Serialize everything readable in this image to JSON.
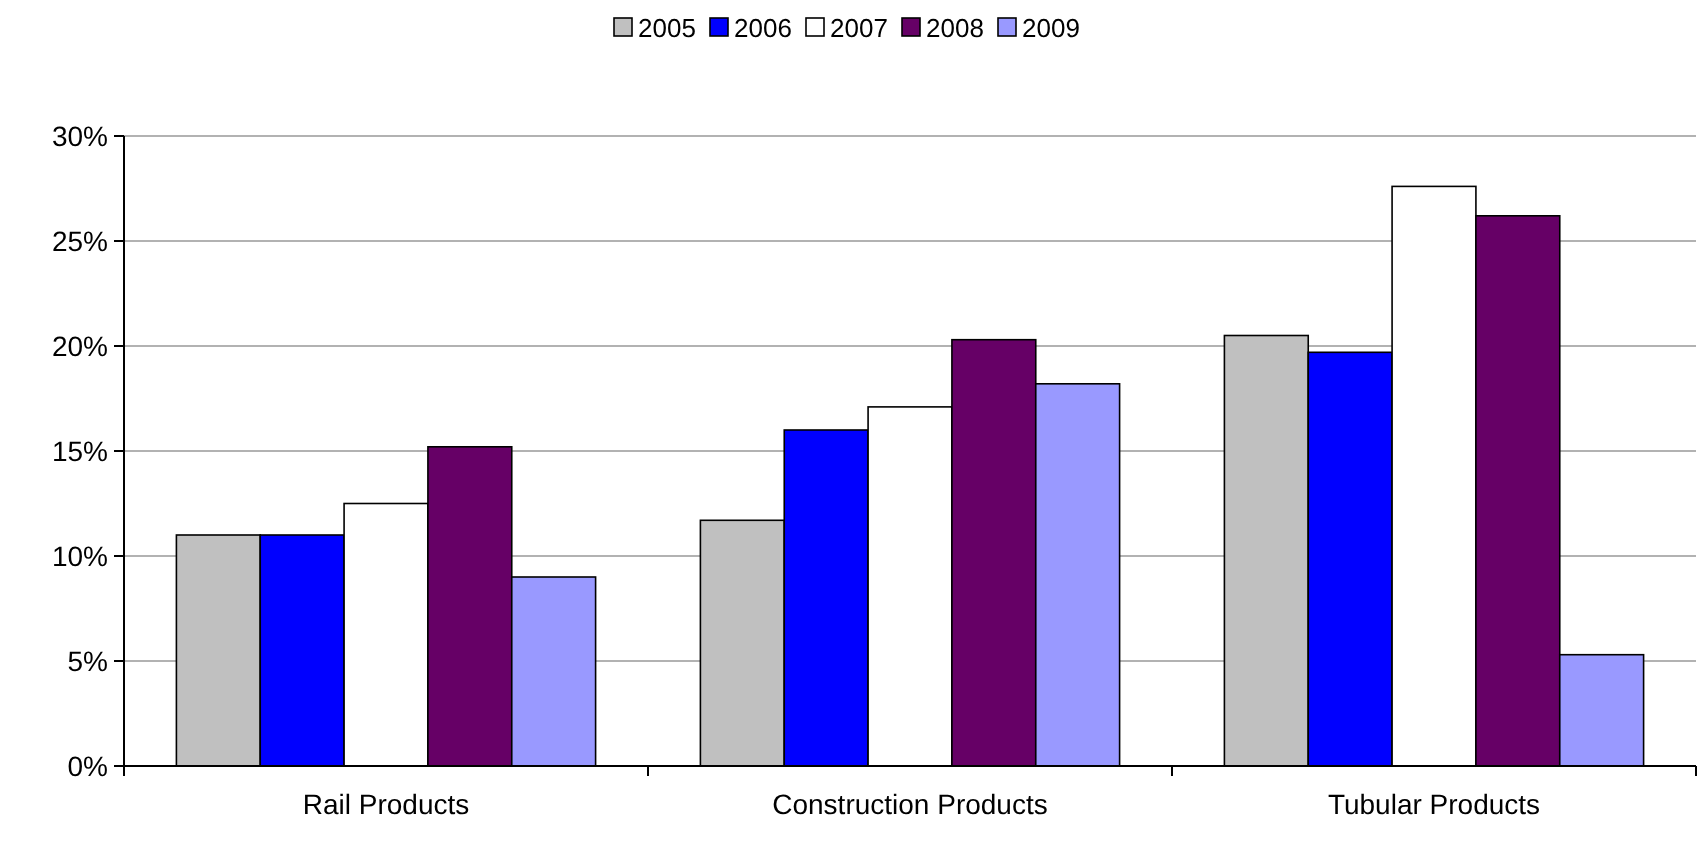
{
  "chart_data": {
    "type": "bar",
    "categories": [
      "Rail Products",
      "Construction Products",
      "Tubular Products"
    ],
    "series": [
      {
        "name": "2005",
        "color": "#c0c0c0",
        "values": [
          11.0,
          11.7,
          20.5
        ]
      },
      {
        "name": "2006",
        "color": "#0000ff",
        "values": [
          11.0,
          16.0,
          19.7
        ]
      },
      {
        "name": "2007",
        "color": "#ffffff",
        "values": [
          12.5,
          17.1,
          27.6
        ]
      },
      {
        "name": "2008",
        "color": "#660066",
        "values": [
          15.2,
          20.3,
          26.2
        ]
      },
      {
        "name": "2009",
        "color": "#9999ff",
        "values": [
          9.0,
          18.2,
          5.3
        ]
      }
    ],
    "ylim": [
      0,
      30
    ],
    "yticks": [
      {
        "value": 0,
        "label": "0%"
      },
      {
        "value": 5,
        "label": "5%"
      },
      {
        "value": 10,
        "label": "10%"
      },
      {
        "value": 15,
        "label": "15%"
      },
      {
        "value": 20,
        "label": "20%"
      },
      {
        "value": 25,
        "label": "25%"
      },
      {
        "value": 30,
        "label": "30%"
      }
    ],
    "grid": "y",
    "legend": "top"
  }
}
